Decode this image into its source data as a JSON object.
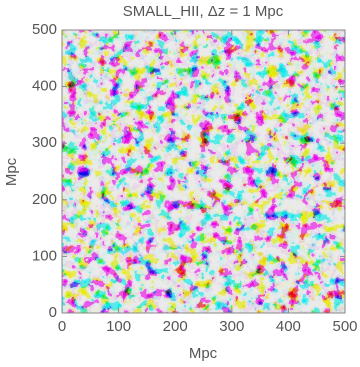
{
  "chart_data": {
    "type": "heatmap",
    "title": "SMALL_HII, Δz = 1 Mpc",
    "x_label": "Mpc",
    "y_label": "Mpc",
    "xlim": [
      0,
      500
    ],
    "ylim": [
      0,
      500
    ],
    "xticks": [
      0,
      100,
      200,
      300,
      400,
      500
    ],
    "yticks": [
      0,
      100,
      200,
      300,
      400,
      500
    ]
  }
}
